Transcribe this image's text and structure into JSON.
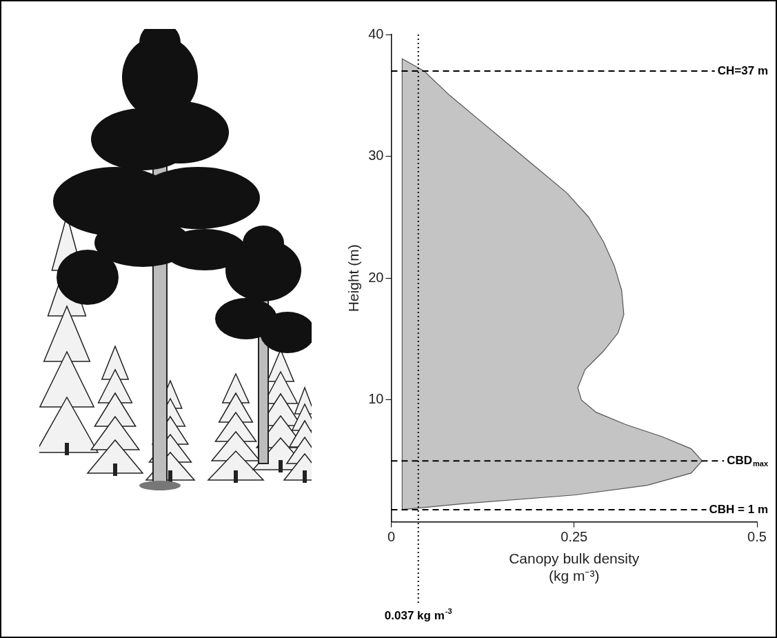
{
  "chart_data": {
    "type": "area",
    "x_label": [
      "Canopy bulk density",
      "(kg m⁻³)"
    ],
    "y_label": "Height (m)",
    "x": [
      0.015,
      0.1,
      0.25,
      0.35,
      0.41,
      0.425,
      0.41,
      0.37,
      0.32,
      0.28,
      0.26,
      0.255,
      0.265,
      0.29,
      0.31,
      0.318,
      0.315,
      0.305,
      0.29,
      0.27,
      0.24,
      0.2,
      0.16,
      0.12,
      0.08,
      0.045,
      0.015,
      0.015
    ],
    "values": [
      1,
      1.5,
      2.2,
      3,
      4,
      5,
      6,
      7,
      8,
      9,
      10,
      11,
      12.5,
      14,
      15.5,
      17,
      19,
      21,
      23,
      25,
      27,
      29,
      31,
      33,
      35,
      37,
      38,
      1
    ],
    "color": "#c4c4c4",
    "xlim": [
      0,
      0.5
    ],
    "xticks": [
      0,
      0.25,
      0.5
    ],
    "ylim": [
      0,
      40
    ],
    "yticks": [
      10,
      20,
      30,
      40
    ],
    "grid": false,
    "annotations": [
      {
        "label": "CH=37 m",
        "y": 37,
        "line_style": "dashed"
      },
      {
        "label": "CBD",
        "subscript": "max",
        "y": 5,
        "line_style": "dashed"
      },
      {
        "label": "CBH = 1 m",
        "y": 1,
        "line_style": "dashed"
      },
      {
        "label": "0.037 kg m",
        "superscript": "-3",
        "x": 0.037,
        "line_style": "dotted"
      }
    ]
  }
}
